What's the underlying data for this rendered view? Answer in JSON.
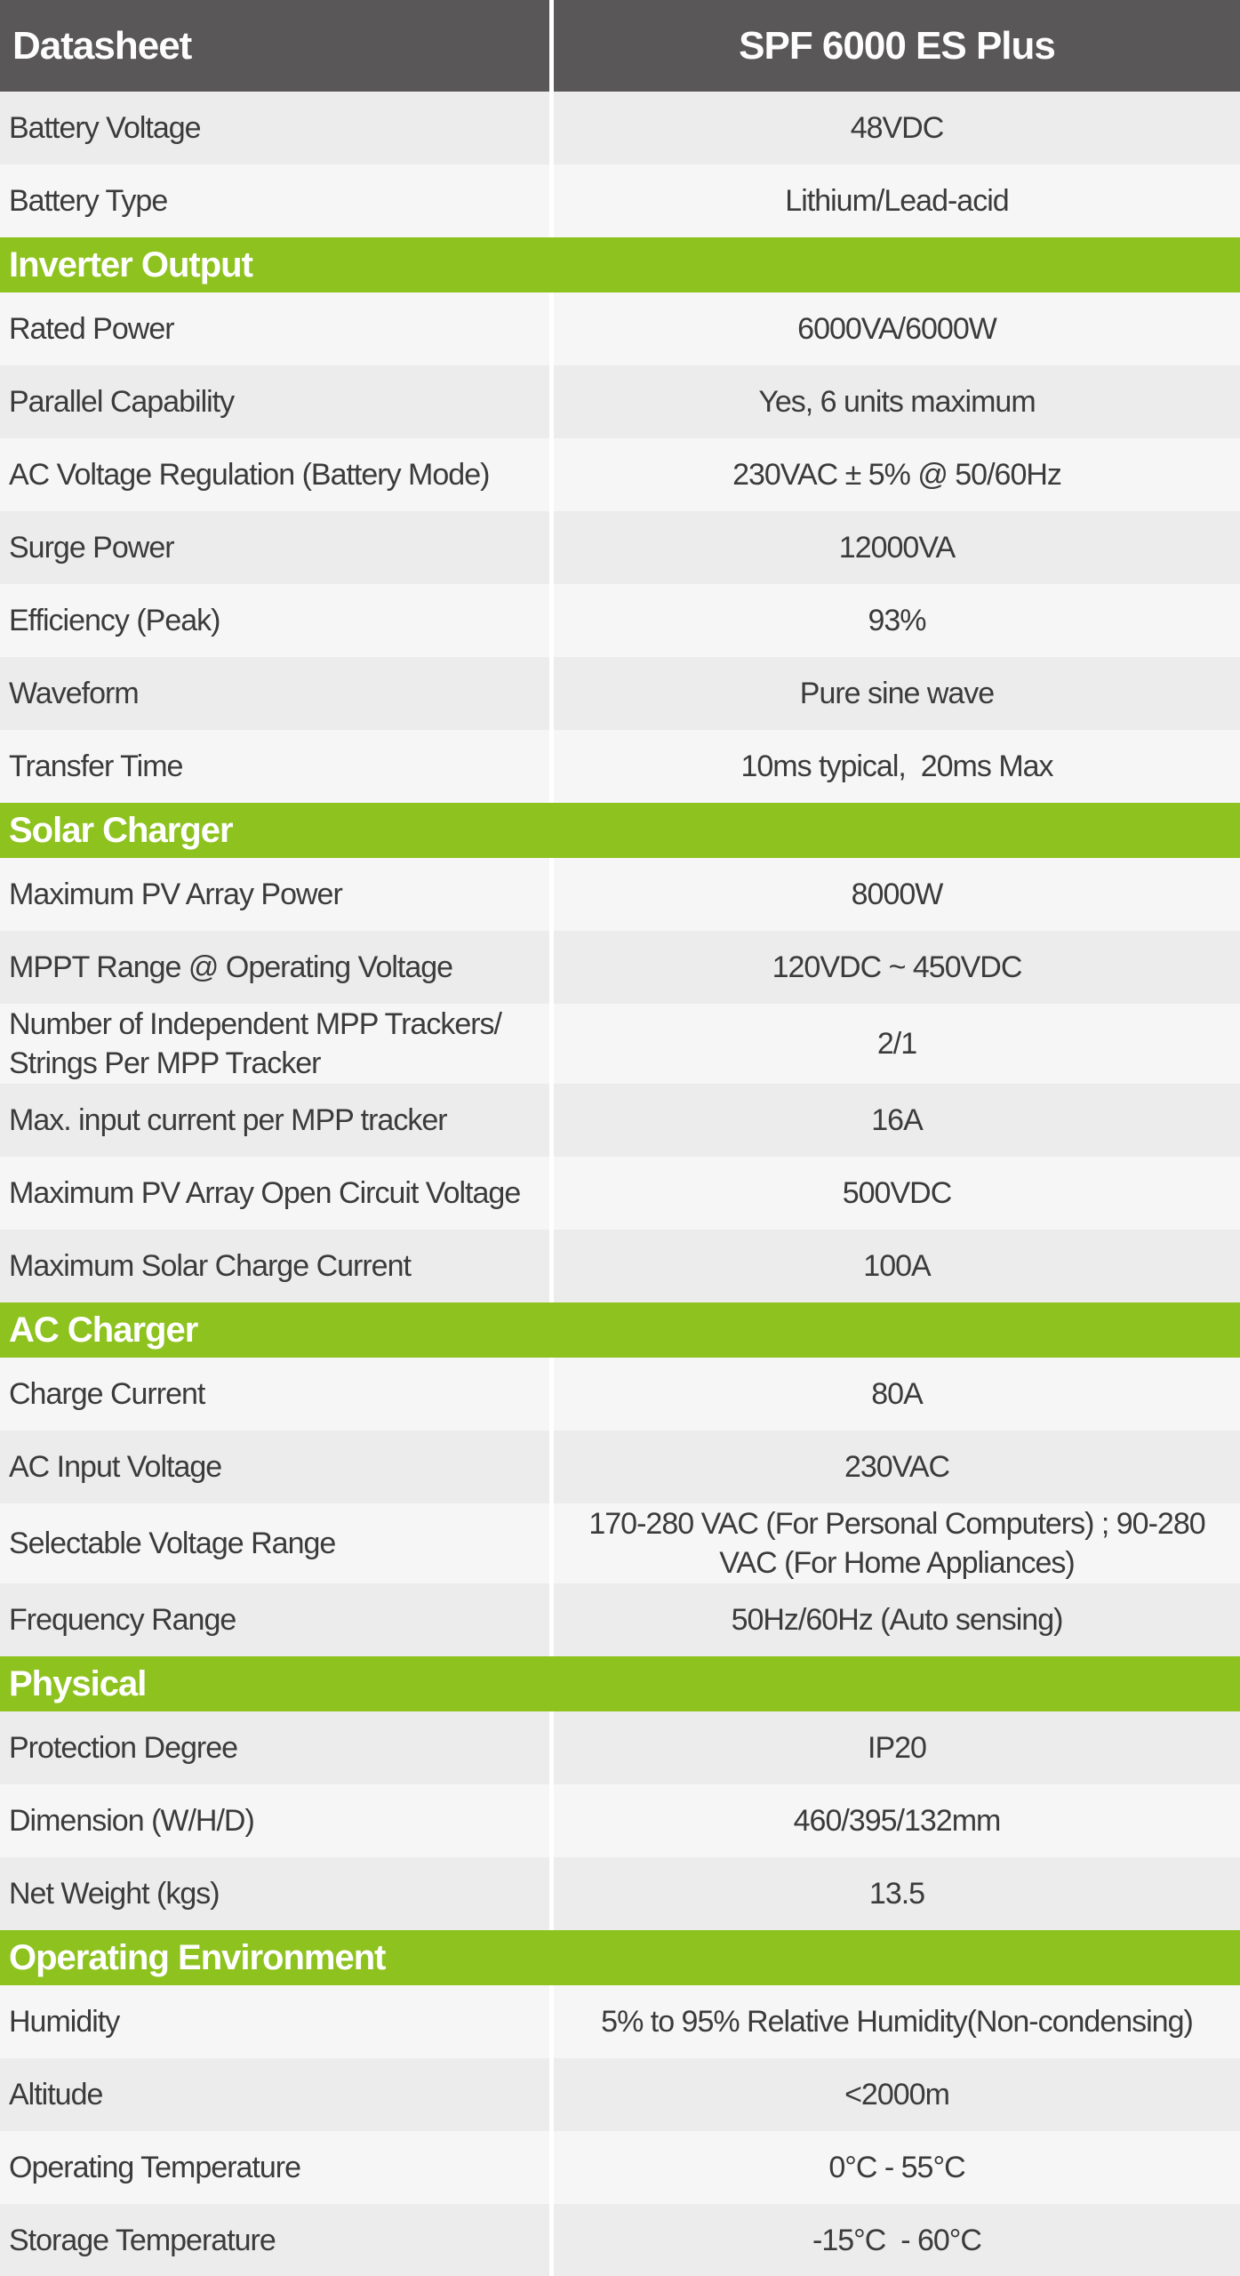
{
  "table": {
    "header": {
      "left": "Datasheet",
      "right": "SPF 6000 ES Plus"
    },
    "colors": {
      "header_bg": "#595757",
      "header_text": "#fdfdfd",
      "section_bg": "#8dc21f",
      "section_text": "#ffffff",
      "row_dark": "#ececec",
      "row_light": "#f6f6f6",
      "row_text": "#3b3b3b",
      "divider": "#ffffff"
    },
    "sections": [
      {
        "title": null,
        "row_shading_start": "dark",
        "rows": [
          {
            "label": "Battery Voltage",
            "value": "48VDC"
          },
          {
            "label": "Battery Type",
            "value": "Lithium/Lead-acid"
          }
        ]
      },
      {
        "title": "Inverter Output",
        "row_shading_start": "light",
        "rows": [
          {
            "label": "Rated Power",
            "value": "6000VA/6000W"
          },
          {
            "label": "Parallel Capability",
            "value": "Yes, 6 units maximum"
          },
          {
            "label": "AC Voltage Regulation (Battery Mode)",
            "value": "230VAC ± 5% @ 50/60Hz"
          },
          {
            "label": "Surge Power",
            "value": "12000VA"
          },
          {
            "label": "Efficiency (Peak)",
            "value": "93%"
          },
          {
            "label": "Waveform",
            "value": "Pure sine wave"
          },
          {
            "label": "Transfer Time",
            "value": "10ms typical,  20ms Max"
          }
        ]
      },
      {
        "title": "Solar Charger",
        "row_shading_start": "light",
        "rows": [
          {
            "label": "Maximum PV Array Power",
            "value": "8000W"
          },
          {
            "label": "MPPT Range @ Operating Voltage",
            "value": "120VDC ~ 450VDC"
          },
          {
            "label": "Number of Independent MPP Trackers/\nStrings Per MPP Tracker",
            "value": "2/1"
          },
          {
            "label": "Max. input current per MPP tracker",
            "value": "16A"
          },
          {
            "label": "Maximum PV Array Open Circuit Voltage",
            "value": "500VDC"
          },
          {
            "label": "Maximum Solar Charge Current",
            "value": "100A"
          }
        ]
      },
      {
        "title": "AC Charger",
        "row_shading_start": "light",
        "rows": [
          {
            "label": "Charge Current",
            "value": "80A"
          },
          {
            "label": "AC Input Voltage",
            "value": "230VAC"
          },
          {
            "label": "Selectable Voltage Range",
            "value": "170-280 VAC (For Personal Computers) ; 90-280\nVAC (For Home Appliances)"
          },
          {
            "label": "Frequency Range",
            "value": "50Hz/60Hz (Auto sensing)"
          }
        ]
      },
      {
        "title": "Physical",
        "row_shading_start": "dark",
        "rows": [
          {
            "label": "Protection Degree",
            "value": "IP20"
          },
          {
            "label": "Dimension (W/H/D)",
            "value": "460/395/132mm"
          },
          {
            "label": "Net Weight (kgs)",
            "value": "13.5"
          }
        ]
      },
      {
        "title": "Operating Environment",
        "row_shading_start": "light",
        "rows": [
          {
            "label": "Humidity",
            "value": "5% to 95% Relative Humidity(Non-condensing)"
          },
          {
            "label": "Altitude",
            "value": "<2000m"
          },
          {
            "label": "Operating Temperature",
            "value": "0°C - 55°C"
          },
          {
            "label": "Storage Temperature",
            "value": "-15°C  - 60°C"
          }
        ]
      }
    ]
  }
}
